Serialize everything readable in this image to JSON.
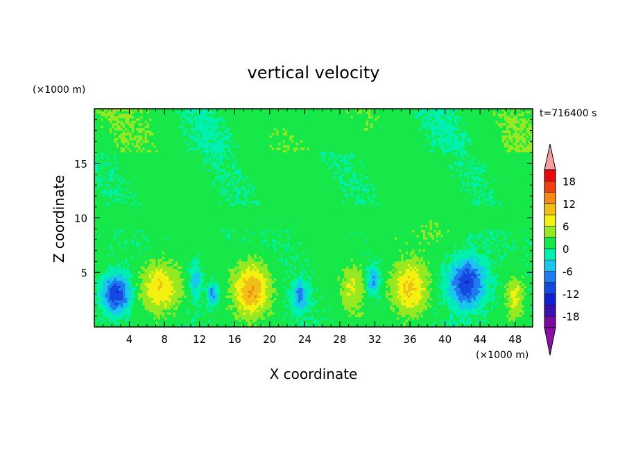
{
  "chart_data": {
    "type": "heatmap",
    "title": "vertical velocity",
    "xlabel": "X coordinate",
    "ylabel": "Z coordinate",
    "x_unit": "(×1000 m)",
    "y_unit": "(×1000 m)",
    "time_label": "t=716400 s",
    "xlim": [
      0,
      50
    ],
    "ylim": [
      0,
      20
    ],
    "x_ticks": [
      4,
      8,
      12,
      16,
      20,
      24,
      28,
      32,
      36,
      40,
      44,
      48
    ],
    "y_ticks": [
      5,
      10,
      15
    ],
    "colorbar": {
      "levels": [
        -21,
        -18,
        -15,
        -12,
        -9,
        -6,
        -3,
        0,
        3,
        6,
        9,
        12,
        15,
        18,
        21
      ],
      "tick_labels": [
        "18",
        "12",
        "6",
        "0",
        "-6",
        "-12",
        "-18"
      ],
      "tick_values": [
        18,
        12,
        6,
        0,
        -6,
        -12,
        -18
      ],
      "colors": [
        "#d8e8ff",
        "#7a0aa0",
        "#3a10b0",
        "#1020d0",
        "#1448e0",
        "#1e7cf0",
        "#18c6ee",
        "#00f0b0",
        "#16e84a",
        "#96e820",
        "#f4f010",
        "#f0c018",
        "#f48818",
        "#f04010",
        "#e80808",
        "#f8a8a8"
      ],
      "under_color": "#8a10a8",
      "over_color": "#f4a0a0"
    },
    "features": [
      {
        "x": 2.5,
        "z": 3.0,
        "value": -13,
        "sx": 1.6,
        "sz": 1.7
      },
      {
        "x": 7.5,
        "z": 3.6,
        "value": 8,
        "sx": 2.3,
        "sz": 2.3
      },
      {
        "x": 11.5,
        "z": 4.2,
        "value": -6,
        "sx": 0.7,
        "sz": 1.6
      },
      {
        "x": 13.5,
        "z": 3.0,
        "value": -8,
        "sx": 0.6,
        "sz": 1.0
      },
      {
        "x": 18.0,
        "z": 3.4,
        "value": 11,
        "sx": 1.9,
        "sz": 2.3
      },
      {
        "x": 23.5,
        "z": 2.8,
        "value": -8,
        "sx": 0.8,
        "sz": 1.4
      },
      {
        "x": 29.5,
        "z": 3.5,
        "value": 5,
        "sx": 1.3,
        "sz": 2.0
      },
      {
        "x": 31.8,
        "z": 4.2,
        "value": -8,
        "sx": 0.7,
        "sz": 1.2
      },
      {
        "x": 36.0,
        "z": 3.6,
        "value": 9,
        "sx": 2.0,
        "sz": 2.4
      },
      {
        "x": 42.5,
        "z": 4.0,
        "value": -13,
        "sx": 2.0,
        "sz": 2.2
      },
      {
        "x": 48.0,
        "z": 2.8,
        "value": 6,
        "sx": 1.0,
        "sz": 2.0
      },
      {
        "x": 38.5,
        "z": 9.0,
        "value": 1.5,
        "sx": 2.8,
        "sz": 1.5
      },
      {
        "x": 33.5,
        "z": 8.5,
        "value": 1.2,
        "sx": 2.5,
        "sz": 1.4
      }
    ]
  }
}
